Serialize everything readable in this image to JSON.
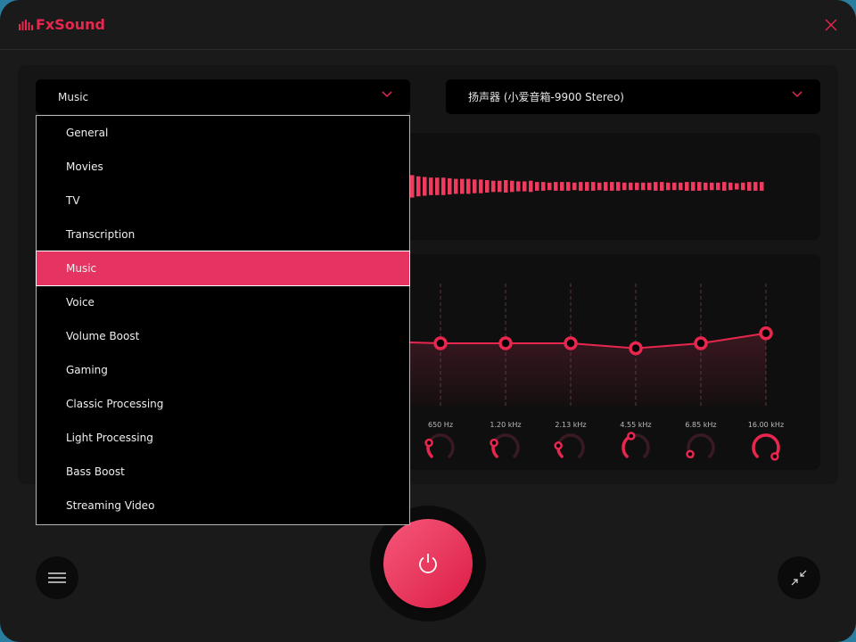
{
  "app": {
    "title": "FxSound",
    "accent": "#e8264e"
  },
  "preset": {
    "selected": "Music",
    "options": [
      "General",
      "Movies",
      "TV",
      "Transcription",
      "Music",
      "Voice",
      "Volume Boost",
      "Gaming",
      "Classic Processing",
      "Light Processing",
      "Bass Boost",
      "Streaming Video"
    ]
  },
  "device": {
    "selected": "扬声器 (小爱音箱-9900 Stereo)"
  },
  "spectrum": {
    "levels": [
      0.9,
      0.8,
      0.75,
      0.7,
      0.7,
      0.7,
      0.65,
      0.6,
      0.6,
      0.6,
      0.55,
      0.55,
      0.5,
      0.45,
      0.45,
      0.5,
      0.45,
      0.4,
      0.4,
      0.45,
      0.35,
      0.35,
      0.3,
      0.35,
      0.35,
      0.35,
      0.3,
      0.35,
      0.35,
      0.35,
      0.3,
      0.35,
      0.35,
      0.35,
      0.3,
      0.3,
      0.3,
      0.3,
      0.3,
      0.35,
      0.35,
      0.3,
      0.3,
      0.3,
      0.35,
      0.35,
      0.35,
      0.3,
      0.3,
      0.3,
      0.35,
      0.3,
      0.25,
      0.3,
      0.35,
      0.35,
      0.35
    ]
  },
  "eq": {
    "bands": [
      {
        "label": "650 Hz",
        "gain": 0.5,
        "knob": 0.25
      },
      {
        "label": "1.20 kHz",
        "gain": 0.5,
        "knob": 0.25
      },
      {
        "label": "2.13 kHz",
        "gain": 0.5,
        "knob": 0.2
      },
      {
        "label": "4.55 kHz",
        "gain": 0.46,
        "knob": 0.42
      },
      {
        "label": "6.85 kHz",
        "gain": 0.5,
        "knob": 0.05
      },
      {
        "label": "16.00 kHz",
        "gain": 0.58,
        "knob": 1.0
      }
    ]
  },
  "icons": {
    "menu": "hamburger-icon",
    "power": "power-icon",
    "minimize": "collapse-arrows-icon",
    "close": "close-icon"
  }
}
